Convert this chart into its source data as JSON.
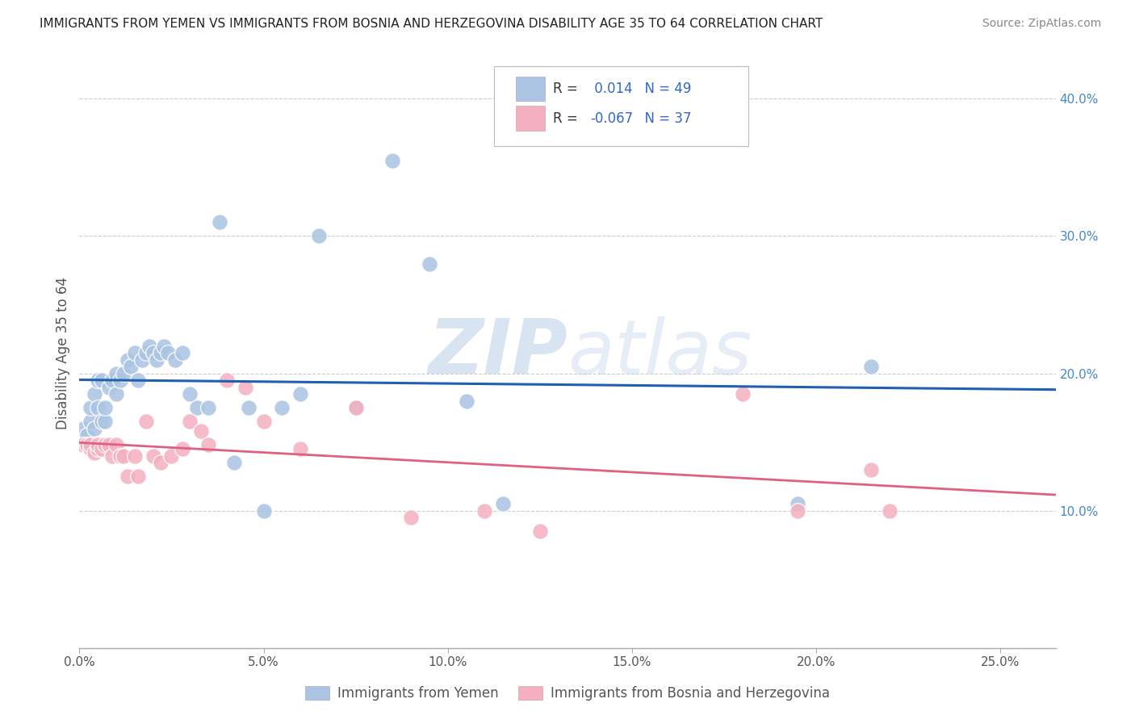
{
  "title": "IMMIGRANTS FROM YEMEN VS IMMIGRANTS FROM BOSNIA AND HERZEGOVINA DISABILITY AGE 35 TO 64 CORRELATION CHART",
  "source": "Source: ZipAtlas.com",
  "xlabel_ticks": [
    "0.0%",
    "5.0%",
    "10.0%",
    "15.0%",
    "20.0%",
    "25.0%"
  ],
  "xlabel_vals": [
    0.0,
    0.05,
    0.1,
    0.15,
    0.2,
    0.25
  ],
  "ylabel_ticks": [
    "10.0%",
    "20.0%",
    "30.0%",
    "40.0%"
  ],
  "ylabel_vals": [
    0.1,
    0.2,
    0.3,
    0.4
  ],
  "ylabel_label": "Disability Age 35 to 64",
  "xlim": [
    0.0,
    0.265
  ],
  "ylim": [
    0.0,
    0.43
  ],
  "legend_label1": "Immigrants from Yemen",
  "legend_label2": "Immigrants from Bosnia and Herzegovina",
  "R1": "0.014",
  "N1": 49,
  "R2": "-0.067",
  "N2": 37,
  "color1": "#aac4e2",
  "color2": "#f4b0c0",
  "trendline1_color": "#2060b0",
  "trendline2_color": "#e06080",
  "watermark_zip": "ZIP",
  "watermark_atlas": "atlas",
  "background": "#ffffff",
  "grid_color": "#cccccc",
  "yemen_x": [
    0.001,
    0.002,
    0.003,
    0.003,
    0.004,
    0.004,
    0.005,
    0.005,
    0.006,
    0.006,
    0.007,
    0.007,
    0.008,
    0.009,
    0.01,
    0.01,
    0.011,
    0.012,
    0.013,
    0.014,
    0.015,
    0.016,
    0.017,
    0.018,
    0.019,
    0.02,
    0.021,
    0.022,
    0.023,
    0.024,
    0.026,
    0.028,
    0.03,
    0.032,
    0.035,
    0.038,
    0.042,
    0.046,
    0.05,
    0.055,
    0.06,
    0.065,
    0.075,
    0.085,
    0.095,
    0.105,
    0.115,
    0.195,
    0.215
  ],
  "yemen_y": [
    0.16,
    0.155,
    0.165,
    0.175,
    0.16,
    0.185,
    0.175,
    0.195,
    0.165,
    0.195,
    0.165,
    0.175,
    0.19,
    0.195,
    0.185,
    0.2,
    0.195,
    0.2,
    0.21,
    0.205,
    0.215,
    0.195,
    0.21,
    0.215,
    0.22,
    0.215,
    0.21,
    0.215,
    0.22,
    0.215,
    0.21,
    0.215,
    0.185,
    0.175,
    0.175,
    0.31,
    0.135,
    0.175,
    0.1,
    0.175,
    0.185,
    0.3,
    0.175,
    0.355,
    0.28,
    0.18,
    0.105,
    0.105,
    0.205
  ],
  "bosnia_x": [
    0.001,
    0.002,
    0.003,
    0.003,
    0.004,
    0.005,
    0.005,
    0.006,
    0.007,
    0.008,
    0.009,
    0.01,
    0.011,
    0.012,
    0.013,
    0.015,
    0.016,
    0.018,
    0.02,
    0.022,
    0.025,
    0.028,
    0.03,
    0.033,
    0.035,
    0.04,
    0.045,
    0.05,
    0.06,
    0.075,
    0.09,
    0.11,
    0.125,
    0.18,
    0.195,
    0.215,
    0.22
  ],
  "bosnia_y": [
    0.148,
    0.148,
    0.145,
    0.148,
    0.142,
    0.145,
    0.148,
    0.145,
    0.148,
    0.148,
    0.14,
    0.148,
    0.14,
    0.14,
    0.125,
    0.14,
    0.125,
    0.165,
    0.14,
    0.135,
    0.14,
    0.145,
    0.165,
    0.158,
    0.148,
    0.195,
    0.19,
    0.165,
    0.145,
    0.175,
    0.095,
    0.1,
    0.085,
    0.185,
    0.1,
    0.13,
    0.1
  ]
}
